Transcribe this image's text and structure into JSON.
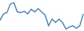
{
  "chart_data": {
    "type": "line",
    "categories": [
      null,
      null,
      null,
      null,
      null,
      null,
      null,
      null,
      null,
      null,
      null,
      null,
      null,
      null,
      null,
      null,
      null,
      null,
      null,
      null,
      null,
      null,
      null,
      null,
      null
    ],
    "values": [
      15,
      25,
      27,
      40,
      42,
      28,
      27,
      29,
      25,
      32,
      28,
      33,
      28,
      23,
      7,
      17,
      12,
      17,
      12,
      2,
      5,
      7,
      3,
      7,
      25
    ],
    "color": "#3a7fc1",
    "ylim": [
      0,
      45
    ],
    "grid": false,
    "tick_labels": false
  }
}
